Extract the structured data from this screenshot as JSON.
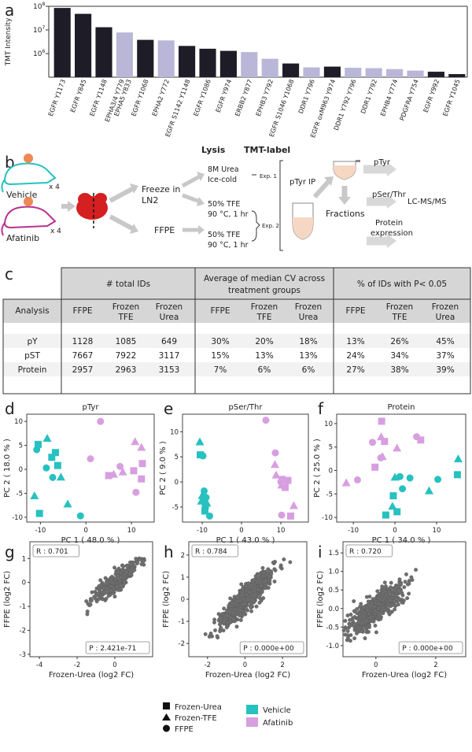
{
  "panel_labels": {
    "a": "a",
    "b": "b",
    "c": "c",
    "d": "d",
    "e": "e",
    "f": "f",
    "g": "g",
    "h": "h",
    "i": "i"
  },
  "colors": {
    "vehicle": "#27c1c0",
    "afatinib": "#d79fe0",
    "dark_bar": "#1d1c27",
    "light_bar": "#b9b6d7",
    "scatter": "#6e6e6e"
  },
  "chart_data": [
    {
      "id": "a",
      "type": "bar",
      "ylabel": "TMT Intensity",
      "yscale": "log",
      "ylim": [
        100000,
        100000000
      ],
      "yticks": [
        "10",
        "10",
        "10"
      ],
      "ytick_exp": [
        "8",
        "7",
        "6"
      ],
      "categories": [
        "EGFR Y1173",
        "EGFR Y845",
        "EGFR Y1148",
        "EPHA3/4 Y779 EPHA5 Y833",
        "EGFR Y1068",
        "EPHA2 Y772",
        "EGFR S1142 Y1148",
        "EGFR Y1086",
        "EGFR Y974",
        "ERBB2 Y877",
        "EPHB3 Y792",
        "EGFR S1046 Y1068",
        "DDR1 Y796",
        "EGFR oxM963 Y974",
        "DDR1 Y792 Y796",
        "DDR1 Y792",
        "EPHB4 Y774",
        "PDGFRA Y754",
        "EGFR Y992",
        "EGFR Y1045"
      ],
      "label_lines": [
        [
          "EGFR Y1173"
        ],
        [
          "EGFR Y845"
        ],
        [
          "EGFR Y1148"
        ],
        [
          "EPHA3/4 Y779",
          "EPHA5 Y833"
        ],
        [
          "EGFR Y1068"
        ],
        [
          "EPHA2 Y772"
        ],
        [
          "EGFR S1142 Y1148"
        ],
        [
          "EGFR Y1086"
        ],
        [
          "EGFR Y974"
        ],
        [
          "ERBB2 Y877"
        ],
        [
          "EPHB3 Y792"
        ],
        [
          "EGFR S1046 Y1068"
        ],
        [
          "DDR1 Y796"
        ],
        [
          "EGFR oxM963 Y974"
        ],
        [
          "DDR1 Y792 Y796"
        ],
        [
          "DDR1 Y792"
        ],
        [
          "EPHB4 Y774"
        ],
        [
          "PDGFRA Y754"
        ],
        [
          "EGFR Y992"
        ],
        [
          "EGFR Y1045"
        ]
      ],
      "values": [
        85000000,
        48000000,
        13000000,
        7800000,
        3800000,
        3600000,
        2100000,
        1600000,
        1300000,
        1150000,
        600000,
        380000,
        260000,
        280000,
        250000,
        240000,
        220000,
        190000,
        170000,
        135000
      ],
      "is_egfr": [
        true,
        true,
        true,
        false,
        true,
        false,
        true,
        true,
        true,
        false,
        false,
        true,
        false,
        true,
        false,
        false,
        false,
        false,
        true,
        true
      ]
    },
    {
      "id": "d",
      "type": "scatter",
      "title": "pTyr",
      "xlabel": "PC 1 ( 48.0 % )",
      "ylabel": "PC 2 ( 18.0 % )",
      "xlim": [
        -13,
        15
      ],
      "ylim": [
        -11,
        11.5
      ],
      "xticks": [
        -10,
        0,
        10
      ],
      "yticks": [
        -10,
        -5,
        0,
        5,
        10
      ],
      "points": [
        {
          "x": -10.5,
          "y": 5.2,
          "g": "Vehicle",
          "s": "Frozen-Urea"
        },
        {
          "x": -10.2,
          "y": -9.2,
          "g": "Vehicle",
          "s": "Frozen-Urea"
        },
        {
          "x": -7.5,
          "y": 2.5,
          "g": "Vehicle",
          "s": "Frozen-Urea"
        },
        {
          "x": -6.7,
          "y": 3.5,
          "g": "Vehicle",
          "s": "Frozen-Urea"
        },
        {
          "x": -6.2,
          "y": 0.8,
          "g": "Vehicle",
          "s": "Frozen-Urea"
        },
        {
          "x": -11.3,
          "y": -5.5,
          "g": "Vehicle",
          "s": "Frozen-TFE"
        },
        {
          "x": -8.5,
          "y": 6.5,
          "g": "Vehicle",
          "s": "Frozen-TFE"
        },
        {
          "x": -5.5,
          "y": -1.6,
          "g": "Vehicle",
          "s": "Frozen-TFE"
        },
        {
          "x": -4.0,
          "y": -7.2,
          "g": "Vehicle",
          "s": "Frozen-TFE"
        },
        {
          "x": -10.8,
          "y": 4.1,
          "g": "Vehicle",
          "s": "FFPE"
        },
        {
          "x": -7.3,
          "y": -1.7,
          "g": "Vehicle",
          "s": "FFPE"
        },
        {
          "x": -8.7,
          "y": 0.3,
          "g": "Vehicle",
          "s": "FFPE"
        },
        {
          "x": -1.2,
          "y": -9.7,
          "g": "Vehicle",
          "s": "FFPE"
        },
        {
          "x": 5.0,
          "y": -1.3,
          "g": "Afatinib",
          "s": "Frozen-Urea"
        },
        {
          "x": 10.5,
          "y": -0.3,
          "g": "Afatinib",
          "s": "Frozen-Urea"
        },
        {
          "x": 12.2,
          "y": -2.0,
          "g": "Afatinib",
          "s": "Frozen-Urea"
        },
        {
          "x": 12.4,
          "y": 1.2,
          "g": "Afatinib",
          "s": "Frozen-Urea"
        },
        {
          "x": 6.1,
          "y": -1.0,
          "g": "Afatinib",
          "s": "Frozen-TFE"
        },
        {
          "x": 8.1,
          "y": -0.5,
          "g": "Afatinib",
          "s": "Frozen-TFE"
        },
        {
          "x": 10.8,
          "y": 5.8,
          "g": "Afatinib",
          "s": "Frozen-TFE"
        },
        {
          "x": 12.2,
          "y": 4.6,
          "g": "Afatinib",
          "s": "Frozen-TFE"
        },
        {
          "x": 1.0,
          "y": 2.2,
          "g": "Afatinib",
          "s": "FFPE"
        },
        {
          "x": 3.2,
          "y": 10.0,
          "g": "Afatinib",
          "s": "FFPE"
        },
        {
          "x": 7.5,
          "y": 0.6,
          "g": "Afatinib",
          "s": "FFPE"
        },
        {
          "x": 11.0,
          "y": -4.8,
          "g": "Afatinib",
          "s": "FFPE"
        }
      ]
    },
    {
      "id": "e",
      "type": "scatter",
      "title": "pSer/Thr",
      "xlabel": "PC 1 ( 43.0 % )",
      "ylabel": "PC 2 ( 9.0 % )",
      "xlim": [
        -15,
        17
      ],
      "ylim": [
        -8,
        13.5
      ],
      "xticks": [
        -10,
        0,
        10
      ],
      "yticks": [
        -5,
        0,
        5,
        10
      ],
      "points": [
        {
          "x": -10.5,
          "y": 5.4,
          "g": "Vehicle",
          "s": "Frozen-Urea"
        },
        {
          "x": -9.6,
          "y": -3.7,
          "g": "Vehicle",
          "s": "Frozen-Urea"
        },
        {
          "x": -9.2,
          "y": -4.7,
          "g": "Vehicle",
          "s": "Frozen-Urea"
        },
        {
          "x": -9.3,
          "y": -5.8,
          "g": "Vehicle",
          "s": "Frozen-Urea"
        },
        {
          "x": -10.6,
          "y": 8.0,
          "g": "Vehicle",
          "s": "Frozen-TFE"
        },
        {
          "x": -10.0,
          "y": -2.7,
          "g": "Vehicle",
          "s": "Frozen-TFE"
        },
        {
          "x": -10.2,
          "y": -3.8,
          "g": "Vehicle",
          "s": "Frozen-TFE"
        },
        {
          "x": -8.8,
          "y": -4.2,
          "g": "Vehicle",
          "s": "Frozen-TFE"
        },
        {
          "x": -9.8,
          "y": 5.2,
          "g": "Vehicle",
          "s": "FFPE"
        },
        {
          "x": -9.5,
          "y": -1.8,
          "g": "Vehicle",
          "s": "FFPE"
        },
        {
          "x": -9.0,
          "y": -3.1,
          "g": "Vehicle",
          "s": "FFPE"
        },
        {
          "x": -8.1,
          "y": -6.8,
          "g": "Vehicle",
          "s": "FFPE"
        },
        {
          "x": 10.3,
          "y": 0.5,
          "g": "Afatinib",
          "s": "Frozen-Urea"
        },
        {
          "x": 11.8,
          "y": 0.3,
          "g": "Afatinib",
          "s": "Frozen-Urea"
        },
        {
          "x": 11.1,
          "y": -1.1,
          "g": "Afatinib",
          "s": "Frozen-Urea"
        },
        {
          "x": 12.5,
          "y": -6.8,
          "g": "Afatinib",
          "s": "Frozen-Urea"
        },
        {
          "x": 8.5,
          "y": 3.5,
          "g": "Afatinib",
          "s": "Frozen-TFE"
        },
        {
          "x": 8.8,
          "y": 1.4,
          "g": "Afatinib",
          "s": "Frozen-TFE"
        },
        {
          "x": 10.2,
          "y": -0.6,
          "g": "Afatinib",
          "s": "Frozen-TFE"
        },
        {
          "x": 13.3,
          "y": -4.7,
          "g": "Afatinib",
          "s": "Frozen-TFE"
        },
        {
          "x": 6.2,
          "y": 12.3,
          "g": "Afatinib",
          "s": "FFPE"
        },
        {
          "x": 8.6,
          "y": 5.8,
          "g": "Afatinib",
          "s": "FFPE"
        },
        {
          "x": 10.0,
          "y": 0.0,
          "g": "Afatinib",
          "s": "FFPE"
        },
        {
          "x": 10.2,
          "y": -6.6,
          "g": "Afatinib",
          "s": "FFPE"
        }
      ]
    },
    {
      "id": "f",
      "type": "scatter",
      "title": "Protein",
      "xlabel": "PC 1 ( 34.0 % )",
      "ylabel": "PC 2 ( 25.0 % )",
      "xlim": [
        -14,
        17
      ],
      "ylim": [
        -11,
        12
      ],
      "xticks": [
        -10,
        0,
        10
      ],
      "yticks": [
        -10,
        -5,
        0,
        5,
        10
      ],
      "points": [
        {
          "x": -2.2,
          "y": -9.5,
          "g": "Vehicle",
          "s": "Frozen-Urea"
        },
        {
          "x": -0.4,
          "y": -5.4,
          "g": "Vehicle",
          "s": "Frozen-Urea"
        },
        {
          "x": 0.5,
          "y": -8.8,
          "g": "Vehicle",
          "s": "Frozen-Urea"
        },
        {
          "x": 15.0,
          "y": -0.9,
          "g": "Vehicle",
          "s": "Frozen-Urea"
        },
        {
          "x": -0.6,
          "y": -7.6,
          "g": "Vehicle",
          "s": "Frozen-TFE"
        },
        {
          "x": 0.0,
          "y": -1.4,
          "g": "Vehicle",
          "s": "Frozen-TFE"
        },
        {
          "x": 8.2,
          "y": -4.3,
          "g": "Vehicle",
          "s": "Frozen-TFE"
        },
        {
          "x": 15.2,
          "y": 2.5,
          "g": "Vehicle",
          "s": "Frozen-TFE"
        },
        {
          "x": 1.2,
          "y": -1.3,
          "g": "Vehicle",
          "s": "FFPE"
        },
        {
          "x": 1.8,
          "y": -3.9,
          "g": "Vehicle",
          "s": "FFPE"
        },
        {
          "x": 3.6,
          "y": -1.6,
          "g": "Vehicle",
          "s": "FFPE"
        },
        {
          "x": 10.3,
          "y": -1.9,
          "g": "Vehicle",
          "s": "FFPE"
        },
        {
          "x": -3.2,
          "y": 10.5,
          "g": "Afatinib",
          "s": "Frozen-Urea"
        },
        {
          "x": -4.8,
          "y": 0.7,
          "g": "Afatinib",
          "s": "Frozen-Urea"
        },
        {
          "x": -2.5,
          "y": 6.2,
          "g": "Afatinib",
          "s": "Frozen-Urea"
        },
        {
          "x": 6.2,
          "y": 6.5,
          "g": "Afatinib",
          "s": "Frozen-Urea"
        },
        {
          "x": -11.7,
          "y": -2.6,
          "g": "Afatinib",
          "s": "Frozen-TFE"
        },
        {
          "x": -3.3,
          "y": 7.2,
          "g": "Afatinib",
          "s": "Frozen-TFE"
        },
        {
          "x": 0.5,
          "y": 4.8,
          "g": "Afatinib",
          "s": "Frozen-TFE"
        },
        {
          "x": -3.0,
          "y": 3.0,
          "g": "Afatinib",
          "s": "Frozen-TFE"
        },
        {
          "x": -9.0,
          "y": -2.0,
          "g": "Afatinib",
          "s": "FFPE"
        },
        {
          "x": -5.4,
          "y": 6.0,
          "g": "Afatinib",
          "s": "FFPE"
        },
        {
          "x": -3.4,
          "y": 2.7,
          "g": "Afatinib",
          "s": "FFPE"
        },
        {
          "x": 5.2,
          "y": 7.2,
          "g": "Afatinib",
          "s": "FFPE"
        }
      ]
    },
    {
      "id": "g",
      "type": "scatter",
      "xlabel": "Frozen-Urea (log2 FC)",
      "ylabel": "FFPE (log2 FC)",
      "xlim": [
        -4.5,
        2.0
      ],
      "ylim": [
        -3.1,
        1.7
      ],
      "xticks": [
        -4,
        -2,
        0
      ],
      "yticks": [
        -3,
        -2,
        -1,
        0,
        1
      ],
      "r_label": "R : 0.701",
      "p_label": "P : 2.421e-71",
      "slope": 0.6,
      "sd_x": 0.6,
      "sd_y": 0.4,
      "n": 300
    },
    {
      "id": "h",
      "type": "scatter",
      "xlabel": "Frozen-Urea (log2 FC)",
      "ylabel": "FFPE (log2 FC)",
      "xlim": [
        -3.0,
        3.3
      ],
      "ylim": [
        -2.6,
        2.6
      ],
      "xticks": [
        -2,
        0,
        2
      ],
      "yticks": [
        -2,
        -1,
        0,
        1,
        2
      ],
      "r_label": "R : 0.784",
      "p_label": "P : 0.000e+00",
      "slope": 0.8,
      "sd_x": 0.65,
      "sd_y": 0.5,
      "n": 800
    },
    {
      "id": "i",
      "type": "scatter",
      "xlabel": "Frozen-Urea (log2 FC)",
      "ylabel": "FFPE (log2 FC)",
      "xlim": [
        -1.1,
        3.0
      ],
      "ylim": [
        -1.3,
        1.8
      ],
      "xticks": [
        0,
        2
      ],
      "yticks": [
        -1.0,
        -0.5,
        0.0,
        0.5,
        1.0,
        1.5
      ],
      "r_label": "R : 0.720",
      "p_label": "P : 0.000e+00",
      "slope": 0.55,
      "sd_x": 0.45,
      "sd_y": 0.35,
      "n": 600
    }
  ],
  "workflow": {
    "vehicle": "Vehicle",
    "afatinib": "Afatinib",
    "x4a": "x 4",
    "x4b": "x 4",
    "lysis": "Lysis",
    "tmt": "TMT-label",
    "freeze_l1": "Freeze in",
    "freeze_l2": "LN2",
    "ffpe": "FFPE",
    "urea_l1": "8M Urea",
    "urea_l2": "Ice-cold",
    "tfe1_l1": "50% TFE",
    "tfe1_l2": "90 °C, 1 hr",
    "tfe2_l1": "50% TFE",
    "tfe2_l2": "90 °C, 1 hr",
    "exp1": "Exp. 1",
    "exp2": "Exp. 2",
    "ptyr_ip": "pTyr IP",
    "fractions": "Fractions",
    "out_ptyr": "pTyr",
    "out_pst": "pSer/Thr",
    "out_prot_l1": "Protein",
    "out_prot_l2": "expression",
    "lcms": "LC-MS/MS"
  },
  "table": {
    "group_headers": [
      "# total IDs",
      "Average of median CV across",
      "treatment groups",
      "% of IDs with P< 0.05"
    ],
    "col_analysis": "Analysis",
    "sub_headers": [
      [
        "FFPE"
      ],
      [
        "Frozen",
        "TFE"
      ],
      [
        "Frozen",
        "Urea"
      ],
      [
        "FFPE"
      ],
      [
        "Frozen",
        "TFE"
      ],
      [
        "Frozen",
        "Urea"
      ],
      [
        "FFPE"
      ],
      [
        "Frozen",
        "TFE"
      ],
      [
        "Frozen",
        "Urea"
      ]
    ],
    "rows": [
      {
        "label": "pY",
        "cells": [
          "1128",
          "1085",
          "649",
          "30%",
          "20%",
          "18%",
          "13%",
          "26%",
          "45%"
        ]
      },
      {
        "label": "pST",
        "cells": [
          "7667",
          "7922",
          "3117",
          "15%",
          "13%",
          "13%",
          "24%",
          "34%",
          "37%"
        ]
      },
      {
        "label": "Protein",
        "cells": [
          "2957",
          "2963",
          "3153",
          "7%",
          "6%",
          "6%",
          "27%",
          "38%",
          "39%"
        ]
      }
    ]
  },
  "legend": {
    "frozen_urea": "Frozen-Urea",
    "frozen_tfe": "Frozen-TFE",
    "ffpe": "FFPE",
    "vehicle": "Vehicle",
    "afatinib": "Afatinib"
  }
}
